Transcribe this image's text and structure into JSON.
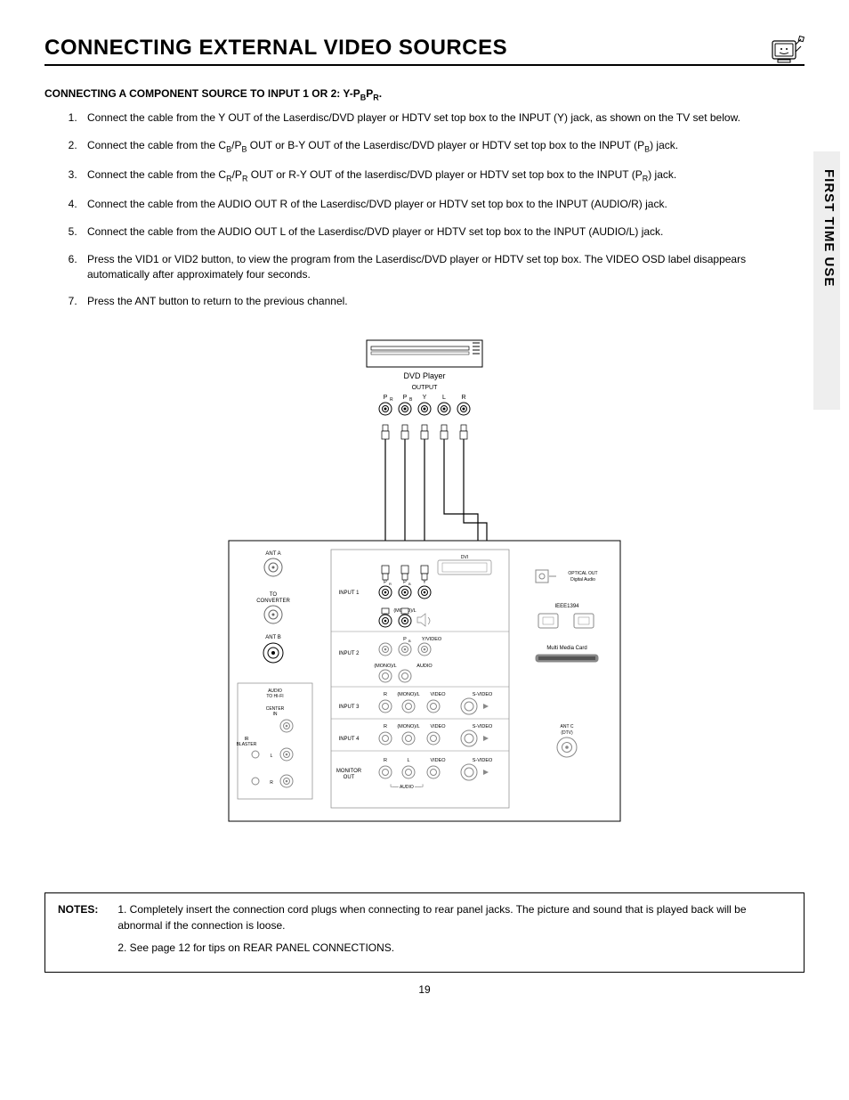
{
  "header": {
    "title": "CONNECTING EXTERNAL VIDEO SOURCES"
  },
  "sidebar": {
    "label": "FIRST TIME USE"
  },
  "subtitle_prefix": "CONNECTING A COMPONENT SOURCE TO INPUT 1 OR 2:  Y-P",
  "subtitle_b": "B",
  "subtitle_mid": "P",
  "subtitle_r": "R",
  "subtitle_suffix": ".",
  "steps": [
    "Connect the cable from the Y OUT of the Laserdisc/DVD player or HDTV set top box to the INPUT (Y) jack, as shown on the TV set below.",
    "Connect the cable from the C_B/P_B OUT or B-Y OUT of the Laserdisc/DVD  player or HDTV set top box to the INPUT (P_B) jack.",
    "Connect the cable from the C_R/P_R OUT or R-Y OUT of the laserdisc/DVD player or HDTV set top box to the INPUT (P_R) jack.",
    "Connect the cable from the AUDIO OUT R of the Laserdisc/DVD player or   HDTV set top box to the INPUT (AUDIO/R) jack.",
    "Connect the cable from the AUDIO OUT L of the Laserdisc/DVD player or HDTV set top box to the INPUT (AUDIO/L) jack.",
    "Press the VID1 or VID2 button, to view the program from the Laserdisc/DVD player or HDTV set top box.  The VIDEO OSD label disappears automatically after approximately four seconds.",
    "Press the ANT button to return to the previous channel."
  ],
  "diagram": {
    "dvd_label": "DVD Player",
    "output_label": "OUTPUT",
    "dvd_jacks": [
      "P_R",
      "P_B",
      "Y",
      "L",
      "R"
    ],
    "panel": {
      "ant_a": "ANT A",
      "to_converter": "TO CONVERTER",
      "ant_b": "ANT B",
      "audio_to_hifi": "AUDIO TO HI-FI",
      "center_in": "CENTER IN",
      "ir_blaster": "IR BLASTER",
      "L": "L",
      "R": "R",
      "input1": "INPUT 1",
      "input2": "INPUT 2",
      "input3": "INPUT 3",
      "input4": "INPUT 4",
      "monitor_out": "MONITOR OUT",
      "pb": "P_B",
      "pr": "P_R",
      "y_video": "Y/VIDEO",
      "mono_l": "(MONO)/L",
      "audio": "AUDIO",
      "video": "VIDEO",
      "s_video": "S-VIDEO",
      "L2": "L",
      "R2": "R",
      "optical_out": "OPTICAL OUT Digital Audio",
      "ieee1394": "IEEE1394",
      "mmc": "Multi Media Card",
      "ant_c": "ANT C (DTV)"
    }
  },
  "notes": {
    "label": "NOTES:",
    "items": [
      "1.  Completely insert the connection cord plugs when connecting to rear panel jacks.  The picture and sound that is played back will be abnormal if the connection is loose.",
      "2.  See page 12 for tips on REAR PANEL CONNECTIONS."
    ]
  },
  "page_number": "19",
  "colors": {
    "text": "#000000",
    "bg": "#ffffff",
    "sidebar_bg": "#eeeeee",
    "line": "#000000",
    "diagram_gray": "#999999"
  }
}
